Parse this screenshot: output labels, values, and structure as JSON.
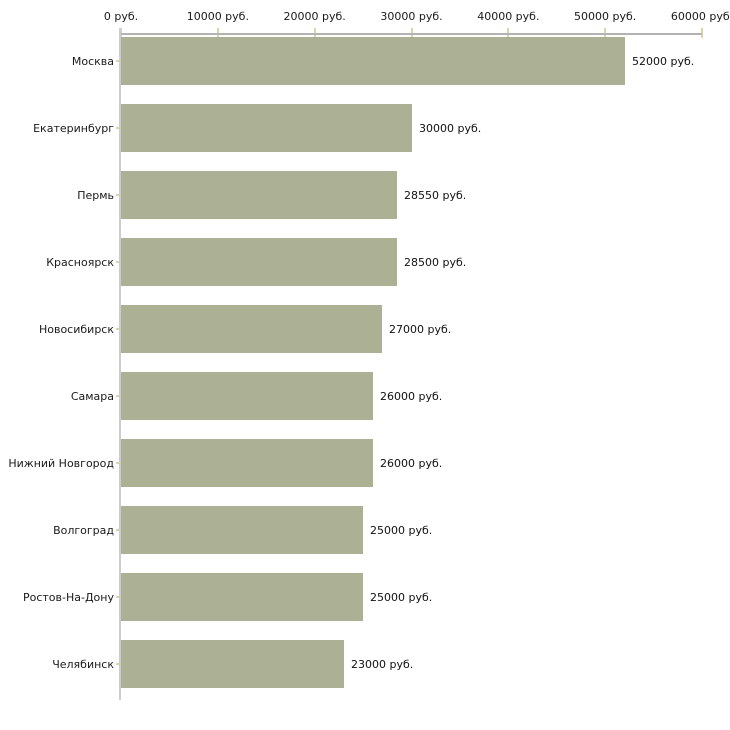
{
  "chart_data": {
    "type": "bar",
    "orientation": "horizontal",
    "title": "",
    "unit": "руб.",
    "categories": [
      "Москва",
      "Екатеринбург",
      "Пермь",
      "Красноярск",
      "Новосибирск",
      "Самара",
      "Нижний Новгород",
      "Волгоград",
      "Ростов-На-Дону",
      "Челябинск"
    ],
    "values": [
      52000,
      30000,
      28550,
      28500,
      27000,
      26000,
      26000,
      25000,
      25000,
      23000
    ],
    "value_labels": [
      "52000 руб.",
      "30000 руб.",
      "28550 руб.",
      "28500 руб.",
      "27000 руб.",
      "26000 руб.",
      "26000 руб.",
      "25000 руб.",
      "25000 руб.",
      "23000 руб."
    ],
    "x_axis": {
      "position": "top",
      "min": 0,
      "max": 60000,
      "ticks": [
        0,
        10000,
        20000,
        30000,
        40000,
        50000,
        60000
      ],
      "tick_labels": [
        "0 руб.",
        "10000 руб.",
        "20000 руб.",
        "30000 руб.",
        "40000 руб.",
        "50000 руб.",
        "60000 руб."
      ]
    },
    "grid": false,
    "legend": false,
    "colors": {
      "bar": "#acb095",
      "x_axis_line": "#b3b3b3",
      "y_axis_line": "#cccccc",
      "tick_mark": "#d9d5ac",
      "text": "#1a1a1a",
      "background": "#ffffff"
    }
  }
}
